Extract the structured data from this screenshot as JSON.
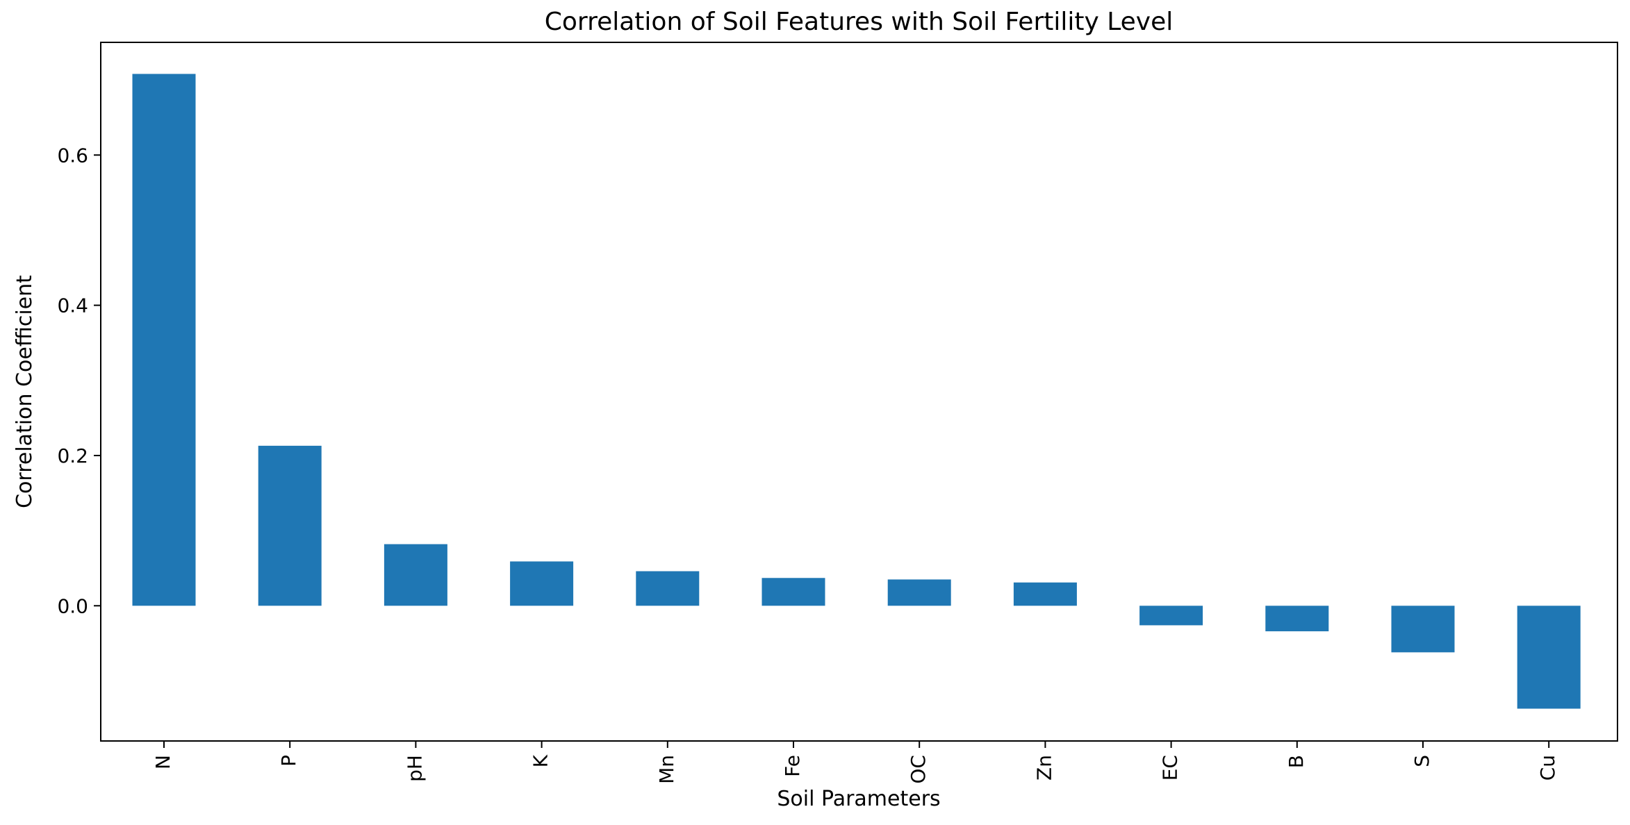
{
  "chart_data": {
    "type": "bar",
    "title": "Correlation of Soil Features with Soil Fertility Level",
    "xlabel": "Soil Parameters",
    "ylabel": "Correlation Coefficient",
    "categories": [
      "N",
      "P",
      "pH",
      "K",
      "Mn",
      "Fe",
      "OC",
      "Zn",
      "EC",
      "B",
      "S",
      "Cu"
    ],
    "values": [
      0.708,
      0.213,
      0.082,
      0.059,
      0.046,
      0.037,
      0.035,
      0.031,
      -0.026,
      -0.034,
      -0.062,
      -0.137
    ],
    "yticks": [
      0.0,
      0.2,
      0.4,
      0.6
    ],
    "ytick_labels": [
      "0.0",
      "0.2",
      "0.4",
      "0.6"
    ],
    "ylim": [
      -0.18,
      0.75
    ],
    "grid": false,
    "legend": "none",
    "bar_color": "#1f77b4"
  }
}
